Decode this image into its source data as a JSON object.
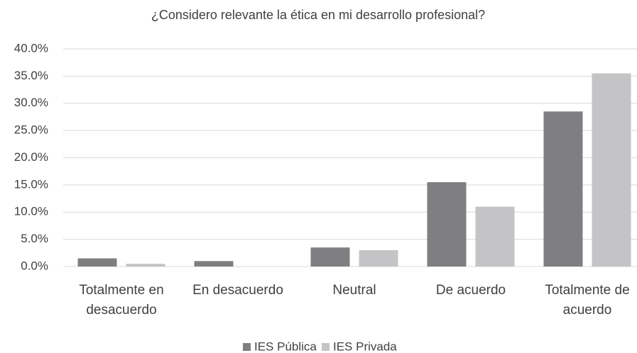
{
  "chart_data": {
    "type": "bar",
    "title": "¿Considero relevante la ética en mi desarrollo profesional?",
    "categories": [
      "Totalmente en desacuerdo",
      "En desacuerdo",
      "Neutral",
      "De acuerdo",
      "Totalmente de acuerdo"
    ],
    "series": [
      {
        "name": "IES Pública",
        "color": "#7f7f81",
        "values": [
          1.5,
          1.0,
          3.5,
          15.5,
          28.5
        ]
      },
      {
        "name": "IES Privada",
        "color": "#c4c4c6",
        "values": [
          0.5,
          0,
          3.0,
          11.0,
          35.5
        ]
      }
    ],
    "ylim": [
      0,
      40
    ],
    "yticks": [
      {
        "value": 0,
        "label": "0.0%"
      },
      {
        "value": 5,
        "label": "5.0%"
      },
      {
        "value": 10,
        "label": "10.0%"
      },
      {
        "value": 15,
        "label": "15.0%"
      },
      {
        "value": 20,
        "label": "20.0%"
      },
      {
        "value": 25,
        "label": "25.0%"
      },
      {
        "value": 30,
        "label": "30.0%"
      },
      {
        "value": 35,
        "label": "35.0%"
      },
      {
        "value": 40,
        "label": "40.0%"
      }
    ],
    "grid": true,
    "legend": "bottom"
  }
}
